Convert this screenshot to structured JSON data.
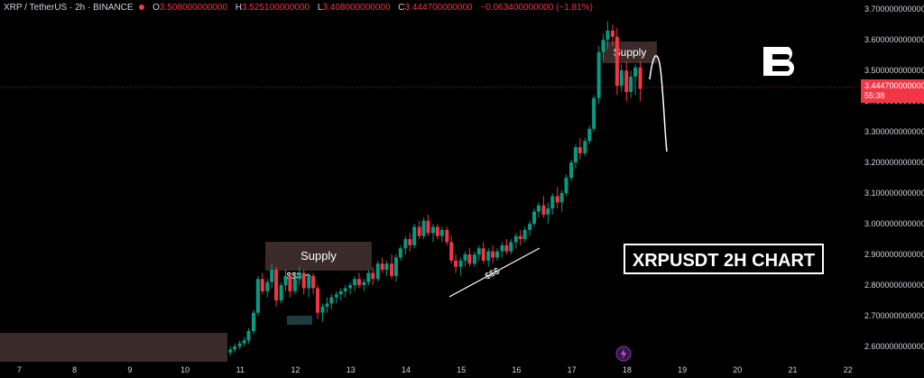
{
  "header": {
    "symbol": "XRP / TetherUS · 2h · BINANCE",
    "open_label": "O",
    "open": "3.508000000000",
    "high_label": "H",
    "high": "3.525100000000",
    "low_label": "L",
    "low": "3.408000000000",
    "close_label": "C",
    "close": "3.444700000000",
    "change": "−0.063400000000 (−1.81%)"
  },
  "annotations": {
    "supply_top": "Supply",
    "supply_mid": "Supply",
    "liquidity_1": "$$$",
    "liquidity_2": "$$$",
    "title_box": "XRPUSDT 2H CHART"
  },
  "price_tag": {
    "price": "3.444700000000",
    "countdown": "55:38"
  },
  "colors": {
    "up": "#089981",
    "down": "#f23645",
    "bg": "#000000",
    "zone": "#3a2a2a",
    "text": "#d1d4dc"
  },
  "logo_icon": "b-brand-logo",
  "flash_icon": "lightning-icon",
  "chart_data": {
    "type": "candlestick",
    "x_ticks": [
      "7",
      "8",
      "9",
      "10",
      "11",
      "12",
      "13",
      "14",
      "15",
      "16",
      "17",
      "18",
      "19",
      "20",
      "21",
      "22"
    ],
    "y_ticks": [
      "2.600000000000",
      "2.700000000000",
      "2.800000000000",
      "2.900000000000",
      "3.000000000000",
      "3.100000000000",
      "3.200000000000",
      "3.300000000000",
      "3.400000000000",
      "3.500000000000",
      "3.600000000000",
      "3.700000000000"
    ],
    "ylim": [
      2.55,
      3.73
    ],
    "x_range": [
      6.65,
      22.2
    ],
    "last_price": 3.4447,
    "candles": [
      {
        "t": 10.82,
        "o": 2.58,
        "h": 2.6,
        "l": 2.57,
        "c": 2.59
      },
      {
        "t": 10.9,
        "o": 2.59,
        "h": 2.61,
        "l": 2.58,
        "c": 2.6
      },
      {
        "t": 10.99,
        "o": 2.6,
        "h": 2.62,
        "l": 2.59,
        "c": 2.61
      },
      {
        "t": 11.07,
        "o": 2.61,
        "h": 2.63,
        "l": 2.6,
        "c": 2.62
      },
      {
        "t": 11.15,
        "o": 2.62,
        "h": 2.66,
        "l": 2.61,
        "c": 2.65
      },
      {
        "t": 11.24,
        "o": 2.65,
        "h": 2.72,
        "l": 2.64,
        "c": 2.71
      },
      {
        "t": 11.32,
        "o": 2.71,
        "h": 2.83,
        "l": 2.7,
        "c": 2.82
      },
      {
        "t": 11.4,
        "o": 2.82,
        "h": 2.84,
        "l": 2.77,
        "c": 2.78
      },
      {
        "t": 11.49,
        "o": 2.78,
        "h": 2.82,
        "l": 2.76,
        "c": 2.81
      },
      {
        "t": 11.57,
        "o": 2.81,
        "h": 2.87,
        "l": 2.79,
        "c": 2.85
      },
      {
        "t": 11.65,
        "o": 2.85,
        "h": 2.86,
        "l": 2.73,
        "c": 2.75
      },
      {
        "t": 11.74,
        "o": 2.75,
        "h": 2.81,
        "l": 2.74,
        "c": 2.8
      },
      {
        "t": 11.82,
        "o": 2.8,
        "h": 2.85,
        "l": 2.78,
        "c": 2.83
      },
      {
        "t": 11.9,
        "o": 2.83,
        "h": 2.84,
        "l": 2.76,
        "c": 2.78
      },
      {
        "t": 11.99,
        "o": 2.78,
        "h": 2.84,
        "l": 2.77,
        "c": 2.82
      },
      {
        "t": 12.07,
        "o": 2.82,
        "h": 2.86,
        "l": 2.8,
        "c": 2.84
      },
      {
        "t": 12.15,
        "o": 2.84,
        "h": 2.85,
        "l": 2.77,
        "c": 2.79
      },
      {
        "t": 12.24,
        "o": 2.79,
        "h": 2.84,
        "l": 2.76,
        "c": 2.83
      },
      {
        "t": 12.32,
        "o": 2.83,
        "h": 2.84,
        "l": 2.77,
        "c": 2.79
      },
      {
        "t": 12.4,
        "o": 2.79,
        "h": 2.8,
        "l": 2.69,
        "c": 2.71
      },
      {
        "t": 12.49,
        "o": 2.71,
        "h": 2.74,
        "l": 2.68,
        "c": 2.73
      },
      {
        "t": 12.57,
        "o": 2.73,
        "h": 2.76,
        "l": 2.71,
        "c": 2.74
      },
      {
        "t": 12.65,
        "o": 2.74,
        "h": 2.77,
        "l": 2.72,
        "c": 2.76
      },
      {
        "t": 12.74,
        "o": 2.76,
        "h": 2.78,
        "l": 2.74,
        "c": 2.77
      },
      {
        "t": 12.82,
        "o": 2.77,
        "h": 2.79,
        "l": 2.75,
        "c": 2.78
      },
      {
        "t": 12.9,
        "o": 2.78,
        "h": 2.8,
        "l": 2.76,
        "c": 2.79
      },
      {
        "t": 12.99,
        "o": 2.79,
        "h": 2.81,
        "l": 2.77,
        "c": 2.8
      },
      {
        "t": 13.07,
        "o": 2.8,
        "h": 2.83,
        "l": 2.78,
        "c": 2.82
      },
      {
        "t": 13.15,
        "o": 2.82,
        "h": 2.84,
        "l": 2.79,
        "c": 2.8
      },
      {
        "t": 13.24,
        "o": 2.8,
        "h": 2.82,
        "l": 2.78,
        "c": 2.81
      },
      {
        "t": 13.32,
        "o": 2.81,
        "h": 2.85,
        "l": 2.8,
        "c": 2.84
      },
      {
        "t": 13.4,
        "o": 2.84,
        "h": 2.86,
        "l": 2.8,
        "c": 2.82
      },
      {
        "t": 13.49,
        "o": 2.82,
        "h": 2.88,
        "l": 2.81,
        "c": 2.87
      },
      {
        "t": 13.57,
        "o": 2.87,
        "h": 2.89,
        "l": 2.84,
        "c": 2.85
      },
      {
        "t": 13.65,
        "o": 2.85,
        "h": 2.88,
        "l": 2.83,
        "c": 2.87
      },
      {
        "t": 13.74,
        "o": 2.87,
        "h": 2.9,
        "l": 2.82,
        "c": 2.83
      },
      {
        "t": 13.82,
        "o": 2.83,
        "h": 2.9,
        "l": 2.81,
        "c": 2.89
      },
      {
        "t": 13.9,
        "o": 2.89,
        "h": 2.93,
        "l": 2.88,
        "c": 2.92
      },
      {
        "t": 13.99,
        "o": 2.92,
        "h": 2.96,
        "l": 2.9,
        "c": 2.95
      },
      {
        "t": 14.07,
        "o": 2.95,
        "h": 2.97,
        "l": 2.91,
        "c": 2.93
      },
      {
        "t": 14.15,
        "o": 2.93,
        "h": 3.0,
        "l": 2.92,
        "c": 2.99
      },
      {
        "t": 14.24,
        "o": 2.99,
        "h": 3.01,
        "l": 2.95,
        "c": 2.96
      },
      {
        "t": 14.32,
        "o": 2.96,
        "h": 3.02,
        "l": 2.95,
        "c": 3.01
      },
      {
        "t": 14.4,
        "o": 3.01,
        "h": 3.03,
        "l": 2.96,
        "c": 2.97
      },
      {
        "t": 14.49,
        "o": 2.97,
        "h": 3.0,
        "l": 2.94,
        "c": 2.99
      },
      {
        "t": 14.57,
        "o": 2.99,
        "h": 3.0,
        "l": 2.95,
        "c": 2.96
      },
      {
        "t": 14.65,
        "o": 2.96,
        "h": 2.99,
        "l": 2.94,
        "c": 2.98
      },
      {
        "t": 14.74,
        "o": 2.98,
        "h": 2.99,
        "l": 2.93,
        "c": 2.94
      },
      {
        "t": 14.82,
        "o": 2.94,
        "h": 2.96,
        "l": 2.87,
        "c": 2.88
      },
      {
        "t": 14.9,
        "o": 2.88,
        "h": 2.9,
        "l": 2.84,
        "c": 2.86
      },
      {
        "t": 14.99,
        "o": 2.86,
        "h": 2.89,
        "l": 2.83,
        "c": 2.88
      },
      {
        "t": 15.07,
        "o": 2.88,
        "h": 2.91,
        "l": 2.86,
        "c": 2.9
      },
      {
        "t": 15.15,
        "o": 2.9,
        "h": 2.92,
        "l": 2.86,
        "c": 2.87
      },
      {
        "t": 15.24,
        "o": 2.87,
        "h": 2.91,
        "l": 2.86,
        "c": 2.9
      },
      {
        "t": 15.32,
        "o": 2.9,
        "h": 2.93,
        "l": 2.88,
        "c": 2.92
      },
      {
        "t": 15.4,
        "o": 2.92,
        "h": 2.94,
        "l": 2.87,
        "c": 2.88
      },
      {
        "t": 15.49,
        "o": 2.88,
        "h": 2.92,
        "l": 2.86,
        "c": 2.91
      },
      {
        "t": 15.57,
        "o": 2.91,
        "h": 2.93,
        "l": 2.87,
        "c": 2.89
      },
      {
        "t": 15.65,
        "o": 2.89,
        "h": 2.92,
        "l": 2.88,
        "c": 2.91
      },
      {
        "t": 15.74,
        "o": 2.91,
        "h": 2.94,
        "l": 2.89,
        "c": 2.93
      },
      {
        "t": 15.82,
        "o": 2.93,
        "h": 2.95,
        "l": 2.9,
        "c": 2.91
      },
      {
        "t": 15.9,
        "o": 2.91,
        "h": 2.95,
        "l": 2.9,
        "c": 2.94
      },
      {
        "t": 15.99,
        "o": 2.94,
        "h": 2.97,
        "l": 2.92,
        "c": 2.96
      },
      {
        "t": 16.07,
        "o": 2.96,
        "h": 2.98,
        "l": 2.93,
        "c": 2.95
      },
      {
        "t": 16.15,
        "o": 2.95,
        "h": 2.99,
        "l": 2.94,
        "c": 2.98
      },
      {
        "t": 16.24,
        "o": 2.98,
        "h": 3.01,
        "l": 2.96,
        "c": 3.0
      },
      {
        "t": 16.32,
        "o": 3.0,
        "h": 3.05,
        "l": 2.99,
        "c": 3.04
      },
      {
        "t": 16.4,
        "o": 3.04,
        "h": 3.07,
        "l": 3.02,
        "c": 3.06
      },
      {
        "t": 16.49,
        "o": 3.06,
        "h": 3.09,
        "l": 3.02,
        "c": 3.03
      },
      {
        "t": 16.57,
        "o": 3.03,
        "h": 3.07,
        "l": 3.0,
        "c": 3.05
      },
      {
        "t": 16.65,
        "o": 3.05,
        "h": 3.1,
        "l": 3.03,
        "c": 3.09
      },
      {
        "t": 16.74,
        "o": 3.09,
        "h": 3.12,
        "l": 3.05,
        "c": 3.07
      },
      {
        "t": 16.82,
        "o": 3.07,
        "h": 3.11,
        "l": 3.04,
        "c": 3.1
      },
      {
        "t": 16.9,
        "o": 3.1,
        "h": 3.16,
        "l": 3.09,
        "c": 3.15
      },
      {
        "t": 16.99,
        "o": 3.15,
        "h": 3.21,
        "l": 3.14,
        "c": 3.2
      },
      {
        "t": 17.07,
        "o": 3.2,
        "h": 3.26,
        "l": 3.18,
        "c": 3.25
      },
      {
        "t": 17.15,
        "o": 3.25,
        "h": 3.28,
        "l": 3.21,
        "c": 3.23
      },
      {
        "t": 17.24,
        "o": 3.23,
        "h": 3.28,
        "l": 3.22,
        "c": 3.27
      },
      {
        "t": 17.32,
        "o": 3.27,
        "h": 3.32,
        "l": 3.26,
        "c": 3.31
      },
      {
        "t": 17.4,
        "o": 3.31,
        "h": 3.42,
        "l": 3.3,
        "c": 3.41
      },
      {
        "t": 17.49,
        "o": 3.41,
        "h": 3.58,
        "l": 3.39,
        "c": 3.56
      },
      {
        "t": 17.57,
        "o": 3.56,
        "h": 3.62,
        "l": 3.53,
        "c": 3.6
      },
      {
        "t": 17.65,
        "o": 3.6,
        "h": 3.66,
        "l": 3.57,
        "c": 3.63
      },
      {
        "t": 17.74,
        "o": 3.63,
        "h": 3.65,
        "l": 3.58,
        "c": 3.61
      },
      {
        "t": 17.82,
        "o": 3.61,
        "h": 3.64,
        "l": 3.42,
        "c": 3.45
      },
      {
        "t": 17.9,
        "o": 3.45,
        "h": 3.52,
        "l": 3.43,
        "c": 3.5
      },
      {
        "t": 17.99,
        "o": 3.5,
        "h": 3.53,
        "l": 3.4,
        "c": 3.43
      },
      {
        "t": 18.07,
        "o": 3.43,
        "h": 3.5,
        "l": 3.41,
        "c": 3.48
      },
      {
        "t": 18.15,
        "o": 3.48,
        "h": 3.52,
        "l": 3.42,
        "c": 3.51
      },
      {
        "t": 18.24,
        "o": 3.51,
        "h": 3.53,
        "l": 3.4,
        "c": 3.44
      }
    ]
  }
}
